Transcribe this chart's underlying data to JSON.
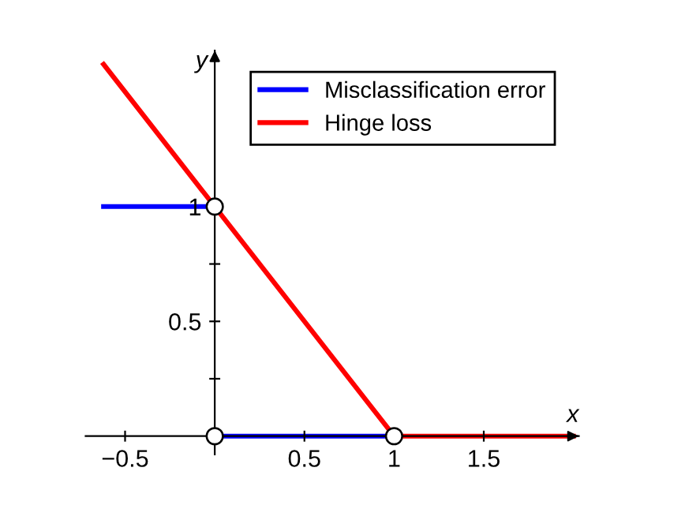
{
  "chart_data": {
    "type": "line",
    "xlabel": "x",
    "ylabel": "y",
    "xlim": [
      -0.72,
      2.03
    ],
    "ylim": [
      -0.08,
      1.68
    ],
    "xticks": [
      {
        "value": -0.5,
        "label": "−0.5"
      },
      {
        "value": 0,
        "label": null
      },
      0.5,
      1,
      1.5
    ],
    "yticks": [
      {
        "value": 0.25,
        "label": null
      },
      0.5,
      {
        "value": 0.75,
        "label": null
      },
      1
    ],
    "series": [
      {
        "name": "Misclassification error",
        "color": "#0000ff",
        "x": [
          -0.62,
          0
        ],
        "values": [
          1,
          1
        ]
      },
      {
        "color": "#0000ff",
        "x": [
          0,
          1
        ],
        "values": [
          0,
          0
        ]
      },
      {
        "name": "Hinge loss",
        "color": "#ff0000",
        "x": [
          -0.62,
          1,
          2.0
        ],
        "values": [
          1.62,
          0,
          0
        ]
      },
      {
        "type": "scatter",
        "color": "#ffffff",
        "marker": "circle",
        "x": [
          0,
          0,
          1
        ],
        "values": [
          1,
          0,
          0
        ]
      }
    ],
    "grid": false,
    "legend": "top right",
    "line_style": "solid"
  }
}
